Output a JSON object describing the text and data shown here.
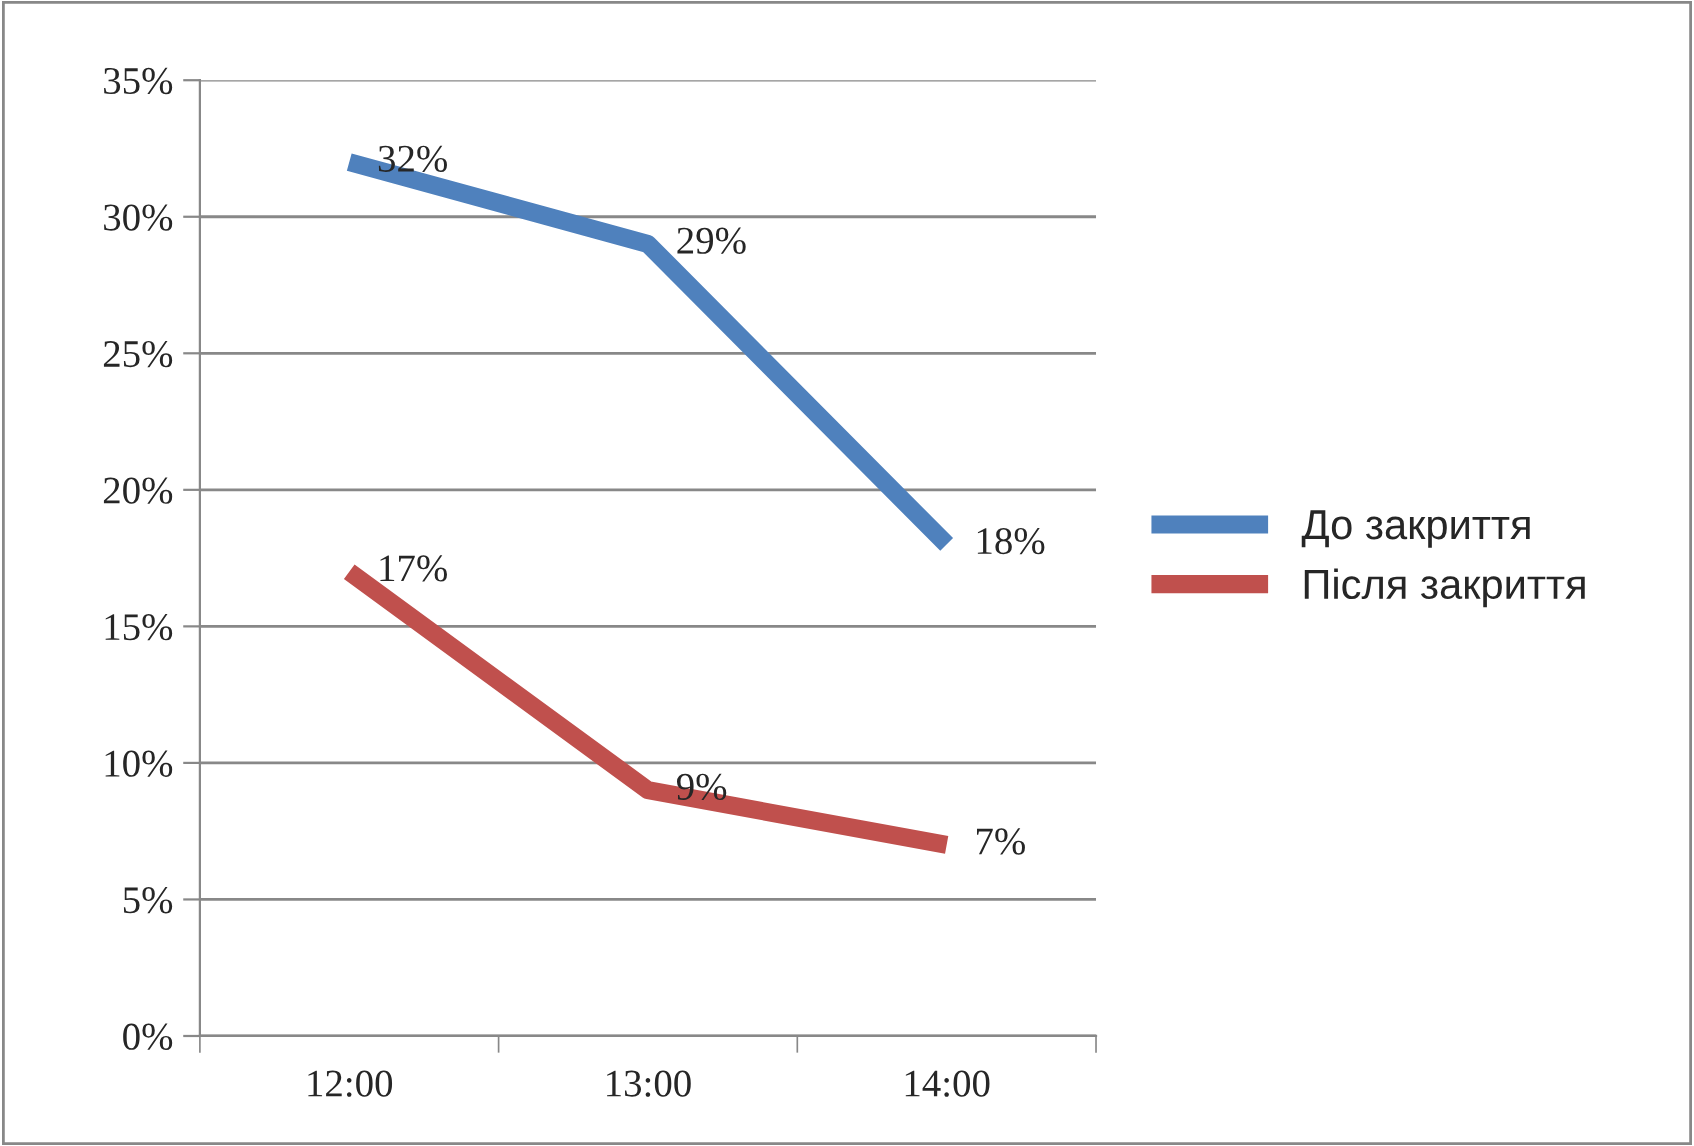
{
  "chart_data": {
    "type": "line",
    "categories": [
      "12:00",
      "13:00",
      "14:00"
    ],
    "series": [
      {
        "name": "До закриття",
        "color": "#4f81bd",
        "values": [
          32,
          29,
          18
        ],
        "value_labels": [
          "32%",
          "29%",
          "18%"
        ]
      },
      {
        "name": "Після закриття",
        "color": "#c0504d",
        "values": [
          17,
          9,
          7
        ],
        "value_labels": [
          "17%",
          "9%",
          "7%"
        ]
      }
    ],
    "ylim": [
      0,
      35
    ],
    "yticks": [
      {
        "value": 0,
        "label": "0%"
      },
      {
        "value": 5,
        "label": "5%"
      },
      {
        "value": 10,
        "label": "10%"
      },
      {
        "value": 15,
        "label": "15%"
      },
      {
        "value": 20,
        "label": "20%"
      },
      {
        "value": 25,
        "label": "25%"
      },
      {
        "value": 30,
        "label": "30%"
      },
      {
        "value": 35,
        "label": "35%"
      }
    ],
    "grid": "y",
    "legend": "right",
    "marker": "none",
    "line_style": "solid"
  }
}
